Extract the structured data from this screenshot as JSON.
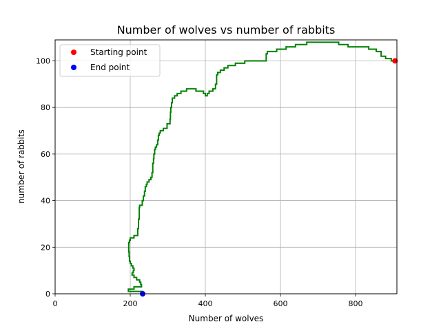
{
  "chart_data": {
    "type": "line",
    "title": "Number of wolves vs number of rabbits",
    "xlabel": "Number of wolves",
    "ylabel": "number of rabbits",
    "xlim": [
      0,
      910
    ],
    "ylim": [
      0,
      109
    ],
    "xticks": [
      0,
      200,
      400,
      600,
      800
    ],
    "yticks": [
      0,
      20,
      40,
      60,
      80,
      100
    ],
    "grid": true,
    "legend_position": "top-left",
    "series": [
      {
        "name": "",
        "color": "#008000",
        "points": [
          [
            905,
            100
          ],
          [
            895,
            101
          ],
          [
            880,
            102
          ],
          [
            868,
            104
          ],
          [
            860,
            104
          ],
          [
            855,
            105
          ],
          [
            842,
            105
          ],
          [
            835,
            106
          ],
          [
            800,
            106
          ],
          [
            780,
            107
          ],
          [
            770,
            107
          ],
          [
            755,
            108
          ],
          [
            740,
            108
          ],
          [
            720,
            108
          ],
          [
            700,
            108
          ],
          [
            680,
            108
          ],
          [
            670,
            107
          ],
          [
            650,
            107
          ],
          [
            640,
            106
          ],
          [
            625,
            106
          ],
          [
            615,
            105
          ],
          [
            600,
            105
          ],
          [
            590,
            104
          ],
          [
            580,
            104
          ],
          [
            565,
            103
          ],
          [
            562,
            100
          ],
          [
            540,
            100
          ],
          [
            520,
            100
          ],
          [
            505,
            99
          ],
          [
            495,
            99
          ],
          [
            480,
            98
          ],
          [
            470,
            98
          ],
          [
            460,
            97
          ],
          [
            450,
            96
          ],
          [
            440,
            95
          ],
          [
            433,
            94
          ],
          [
            430,
            90
          ],
          [
            427,
            88
          ],
          [
            420,
            87
          ],
          [
            415,
            87
          ],
          [
            410,
            86
          ],
          [
            405,
            85
          ],
          [
            400,
            86
          ],
          [
            395,
            87
          ],
          [
            385,
            87
          ],
          [
            375,
            88
          ],
          [
            365,
            88
          ],
          [
            350,
            87
          ],
          [
            335,
            86
          ],
          [
            325,
            85
          ],
          [
            318,
            84
          ],
          [
            312,
            82
          ],
          [
            310,
            80
          ],
          [
            308,
            78
          ],
          [
            307,
            75
          ],
          [
            306,
            73
          ],
          [
            298,
            71
          ],
          [
            288,
            70
          ],
          [
            280,
            69
          ],
          [
            277,
            68
          ],
          [
            275,
            66
          ],
          [
            273,
            64
          ],
          [
            270,
            63
          ],
          [
            267,
            62
          ],
          [
            265,
            60
          ],
          [
            263,
            58
          ],
          [
            262,
            56
          ],
          [
            260,
            52
          ],
          [
            258,
            50
          ],
          [
            255,
            49
          ],
          [
            250,
            48
          ],
          [
            245,
            47
          ],
          [
            243,
            46
          ],
          [
            240,
            44
          ],
          [
            238,
            42
          ],
          [
            235,
            40
          ],
          [
            232,
            38
          ],
          [
            225,
            37
          ],
          [
            224,
            32
          ],
          [
            222,
            30
          ],
          [
            222,
            28
          ],
          [
            220,
            25
          ],
          [
            210,
            24
          ],
          [
            205,
            24
          ],
          [
            200,
            23
          ],
          [
            198,
            22
          ],
          [
            196,
            20
          ],
          [
            196,
            18
          ],
          [
            197,
            16
          ],
          [
            198,
            14
          ],
          [
            200,
            13
          ],
          [
            203,
            12
          ],
          [
            207,
            11
          ],
          [
            210,
            10
          ],
          [
            208,
            9
          ],
          [
            205,
            8
          ],
          [
            210,
            7
          ],
          [
            217,
            6
          ],
          [
            225,
            5
          ],
          [
            228,
            4
          ],
          [
            230,
            3
          ],
          [
            225,
            3
          ],
          [
            210,
            2
          ],
          [
            200,
            2
          ],
          [
            195,
            1
          ],
          [
            215,
            1
          ],
          [
            230,
            1
          ],
          [
            233,
            0
          ]
        ]
      }
    ],
    "markers": [
      {
        "name": "Starting point",
        "color": "#ff0000",
        "x": 905,
        "y": 100
      },
      {
        "name": "End point",
        "color": "#0000ff",
        "x": 233,
        "y": 0
      }
    ]
  }
}
